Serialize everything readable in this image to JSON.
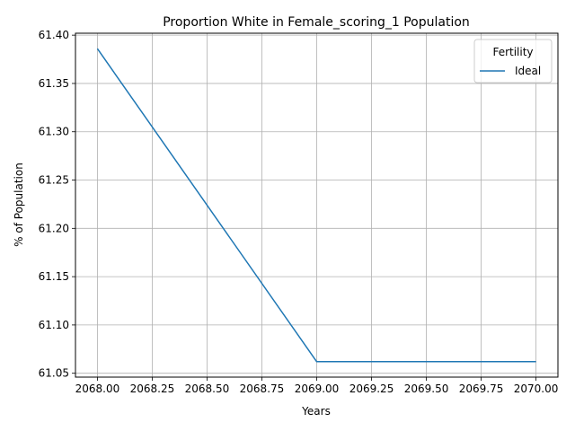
{
  "chart_data": {
    "type": "line",
    "title": "Proportion White in Female_scoring_1 Population",
    "xlabel": "Years",
    "ylabel": "% of Population",
    "xlim": [
      2067.9,
      2070.1
    ],
    "ylim": [
      61.046,
      61.402
    ],
    "xticks": [
      2068.0,
      2068.25,
      2068.5,
      2068.75,
      2069.0,
      2069.25,
      2069.5,
      2069.75,
      2070.0
    ],
    "xtick_labels": [
      "2068.00",
      "2068.25",
      "2068.50",
      "2068.75",
      "2069.00",
      "2069.25",
      "2069.50",
      "2069.75",
      "2070.00"
    ],
    "yticks": [
      61.05,
      61.1,
      61.15,
      61.2,
      61.25,
      61.3,
      61.35,
      61.4
    ],
    "ytick_labels": [
      "61.05",
      "61.10",
      "61.15",
      "61.20",
      "61.25",
      "61.30",
      "61.35",
      "61.40"
    ],
    "grid": true,
    "legend": {
      "title": "Fertility",
      "placement": "top-right"
    },
    "series": [
      {
        "name": "Ideal",
        "color": "#1f77b4",
        "x": [
          2068,
          2069,
          2070
        ],
        "y": [
          61.386,
          61.062,
          61.062
        ]
      }
    ]
  }
}
